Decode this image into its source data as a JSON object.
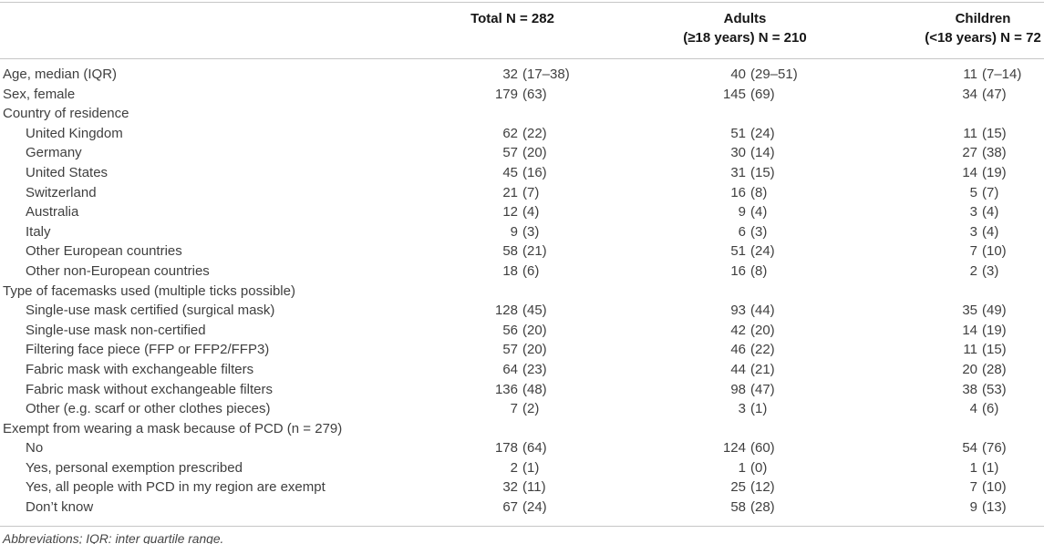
{
  "table": {
    "columns": [
      {
        "label": "Total N = 282",
        "sublabel": ""
      },
      {
        "label": "Adults",
        "sublabel": "(≥18 years) N = 210"
      },
      {
        "label": "Children",
        "sublabel": "(<18 years) N = 72"
      }
    ],
    "rows": [
      {
        "label": "Age, median (IQR)",
        "section": false,
        "indent": false,
        "values": [
          "32 (17–38)",
          "40 (29–51)",
          "11 (7–14)"
        ]
      },
      {
        "label": "Sex, female",
        "section": false,
        "indent": false,
        "values": [
          "179 (63)",
          "145 (69)",
          "34 (47)"
        ]
      },
      {
        "label": "Country of residence",
        "section": true,
        "indent": false,
        "values": [
          "",
          "",
          ""
        ]
      },
      {
        "label": "United Kingdom",
        "section": false,
        "indent": true,
        "values": [
          "62 (22)",
          "51 (24)",
          "11 (15)"
        ]
      },
      {
        "label": "Germany",
        "section": false,
        "indent": true,
        "values": [
          "57 (20)",
          "30 (14)",
          "27 (38)"
        ]
      },
      {
        "label": "United States",
        "section": false,
        "indent": true,
        "values": [
          "45 (16)",
          "31 (15)",
          "14 (19)"
        ]
      },
      {
        "label": "Switzerland",
        "section": false,
        "indent": true,
        "values": [
          "21 (7)",
          "16 (8)",
          "5 (7)"
        ]
      },
      {
        "label": "Australia",
        "section": false,
        "indent": true,
        "values": [
          "12 (4)",
          "9 (4)",
          "3 (4)"
        ]
      },
      {
        "label": "Italy",
        "section": false,
        "indent": true,
        "values": [
          "9 (3)",
          "6 (3)",
          "3 (4)"
        ]
      },
      {
        "label": "Other European countries",
        "section": false,
        "indent": true,
        "values": [
          "58 (21)",
          "51 (24)",
          "7 (10)"
        ]
      },
      {
        "label": "Other non-European countries",
        "section": false,
        "indent": true,
        "values": [
          "18 (6)",
          "16 (8)",
          "2 (3)"
        ]
      },
      {
        "label": "Type of facemasks used (multiple ticks possible)",
        "section": true,
        "indent": false,
        "values": [
          "",
          "",
          ""
        ]
      },
      {
        "label": "Single-use mask certified (surgical mask)",
        "section": false,
        "indent": true,
        "values": [
          "128 (45)",
          "93 (44)",
          "35 (49)"
        ]
      },
      {
        "label": "Single-use mask non-certified",
        "section": false,
        "indent": true,
        "values": [
          "56 (20)",
          "42 (20)",
          "14 (19)"
        ]
      },
      {
        "label": "Filtering face piece (FFP or FFP2/FFP3)",
        "section": false,
        "indent": true,
        "values": [
          "57 (20)",
          "46 (22)",
          "11 (15)"
        ]
      },
      {
        "label": "Fabric mask with exchangeable filters",
        "section": false,
        "indent": true,
        "values": [
          "64 (23)",
          "44 (21)",
          "20 (28)"
        ]
      },
      {
        "label": "Fabric mask without exchangeable filters",
        "section": false,
        "indent": true,
        "values": [
          "136 (48)",
          "98 (47)",
          "38 (53)"
        ]
      },
      {
        "label": "Other (e.g. scarf or other clothes pieces)",
        "section": false,
        "indent": true,
        "values": [
          "7 (2)",
          "3 (1)",
          "4 (6)"
        ]
      },
      {
        "label": "Exempt from wearing a mask because of PCD (n = 279)",
        "section": true,
        "indent": false,
        "values": [
          "",
          "",
          ""
        ]
      },
      {
        "label": "No",
        "section": false,
        "indent": true,
        "values": [
          "178 (64)",
          "124 (60)",
          "54 (76)"
        ]
      },
      {
        "label": "Yes, personal exemption prescribed",
        "section": false,
        "indent": true,
        "values": [
          "2 (1)",
          "1 (0)",
          "1 (1)"
        ]
      },
      {
        "label": "Yes, all people with PCD in my region are exempt",
        "section": false,
        "indent": true,
        "values": [
          "32 (11)",
          "25 (12)",
          "7 (10)"
        ]
      },
      {
        "label": "Don’t know",
        "section": false,
        "indent": true,
        "values": [
          "67 (24)",
          "58 (28)",
          "9 (13)"
        ]
      }
    ],
    "footnote": "Abbreviations; IQR: inter quartile range."
  },
  "colors": {
    "rule_line": "#c6c6c6",
    "header_text": "#161616",
    "body_text": "#3f3f3f",
    "footnote_text": "#454545",
    "background": "#ffffff"
  }
}
